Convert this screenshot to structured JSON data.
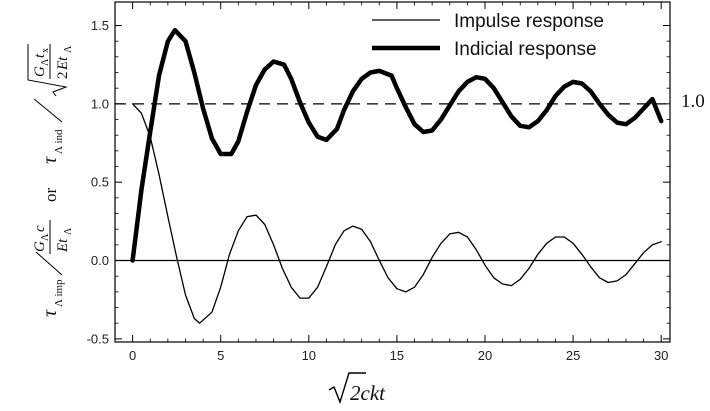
{
  "chart_data": {
    "type": "line",
    "xlim": [
      -1,
      30.5
    ],
    "ylim": [
      -0.52,
      1.65
    ],
    "x_ticks": [
      0,
      5,
      10,
      15,
      20,
      25,
      30
    ],
    "x_tick_labels": [
      "0",
      "5",
      "10",
      "15",
      "20",
      "25",
      "30"
    ],
    "y_ticks": [
      -0.5,
      0.0,
      0.5,
      1.0,
      1.5
    ],
    "y_tick_labels": [
      "-0.5",
      "0.0",
      "0.5",
      "1.0",
      "1.5"
    ],
    "xlabel": "√2ckt",
    "ylabel": "τ_Λimp / (G_Λ c / E t_Λ)   or   τ_Λind / √(G_Λ t_x / 2E t_Λ)",
    "right_reference_label": "1.0",
    "reference_lines": [
      {
        "y": 1.0,
        "style": "dashed"
      },
      {
        "y": 0.0,
        "style": "solid"
      }
    ],
    "legend": {
      "position": "top-right"
    },
    "series": [
      {
        "name": "Impulse response",
        "style": "thin",
        "x": [
          0,
          0.5,
          1,
          1.5,
          2,
          2.5,
          3,
          3.5,
          3.8,
          4.5,
          5,
          5.5,
          6,
          6.5,
          7,
          7.5,
          8,
          8.5,
          9,
          9.5,
          10,
          10.5,
          11,
          11.5,
          12,
          12.5,
          13,
          13.5,
          14,
          14.5,
          15,
          15.5,
          16,
          16.5,
          17,
          17.5,
          18,
          18.5,
          19,
          19.5,
          20,
          20.5,
          21,
          21.5,
          22,
          22.5,
          23,
          23.5,
          24,
          24.5,
          25,
          25.5,
          26,
          26.5,
          27,
          27.5,
          28,
          28.5,
          29,
          29.5,
          30
        ],
        "y": [
          1.0,
          0.94,
          0.79,
          0.55,
          0.28,
          0.02,
          -0.22,
          -0.37,
          -0.4,
          -0.33,
          -0.17,
          0.04,
          0.19,
          0.28,
          0.29,
          0.23,
          0.1,
          -0.05,
          -0.17,
          -0.24,
          -0.24,
          -0.17,
          -0.04,
          0.1,
          0.19,
          0.22,
          0.2,
          0.12,
          0.0,
          -0.11,
          -0.18,
          -0.2,
          -0.17,
          -0.09,
          0.02,
          0.11,
          0.17,
          0.18,
          0.15,
          0.07,
          -0.03,
          -0.11,
          -0.15,
          -0.16,
          -0.12,
          -0.05,
          0.04,
          0.11,
          0.15,
          0.15,
          0.11,
          0.04,
          -0.04,
          -0.11,
          -0.14,
          -0.13,
          -0.09,
          -0.02,
          0.05,
          0.1,
          0.12
        ]
      },
      {
        "name": "Indicial response",
        "style": "thick",
        "x": [
          0,
          0.5,
          1,
          1.5,
          2,
          2.4,
          3,
          3.5,
          4,
          4.5,
          5,
          5.6,
          6,
          6.5,
          7,
          7.5,
          8,
          8.6,
          9,
          9.5,
          10,
          10.5,
          11,
          11.6,
          12,
          12.5,
          13,
          13.5,
          14,
          14.7,
          15,
          15.5,
          16,
          16.5,
          17,
          17.5,
          18,
          18.5,
          19,
          19.5,
          20,
          20.5,
          21,
          21.5,
          22,
          22.5,
          23,
          23.5,
          24,
          24.5,
          25,
          25.5,
          26,
          26.5,
          27,
          27.5,
          28,
          28.5,
          29,
          29.5,
          30
        ],
        "y": [
          0.0,
          0.45,
          0.82,
          1.18,
          1.4,
          1.47,
          1.4,
          1.2,
          0.97,
          0.78,
          0.68,
          0.68,
          0.76,
          0.95,
          1.12,
          1.22,
          1.27,
          1.25,
          1.16,
          1.01,
          0.88,
          0.79,
          0.77,
          0.84,
          0.96,
          1.08,
          1.16,
          1.2,
          1.21,
          1.18,
          1.1,
          0.98,
          0.87,
          0.82,
          0.83,
          0.9,
          0.99,
          1.08,
          1.14,
          1.17,
          1.16,
          1.1,
          1.01,
          0.92,
          0.86,
          0.85,
          0.89,
          0.96,
          1.05,
          1.11,
          1.14,
          1.13,
          1.08,
          1.0,
          0.93,
          0.88,
          0.87,
          0.91,
          0.97,
          1.03,
          0.89
        ]
      }
    ]
  }
}
